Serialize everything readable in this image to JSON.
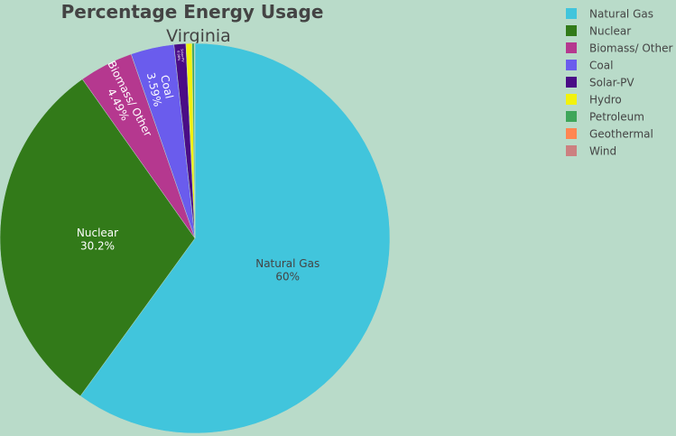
{
  "chart_data": {
    "type": "pie",
    "title": "Percentage Energy Usage",
    "subtitle": "Virginia",
    "legend_position": "top-right",
    "slices": [
      {
        "label": "Natural Gas",
        "value": 60.0,
        "text": "60%",
        "color": "#41c5dc"
      },
      {
        "label": "Nuclear",
        "value": 30.2,
        "text": "30.2%",
        "color": "#327a19"
      },
      {
        "label": "Biomass/ Other",
        "value": 4.49,
        "text": "4.49%",
        "color": "#b5388f"
      },
      {
        "label": "Coal",
        "value": 3.59,
        "text": "3.59%",
        "color": "#6a5ced"
      },
      {
        "label": "Solar-PV",
        "value": 0.98,
        "text": "0.98%",
        "color": "#4a0c86"
      },
      {
        "label": "Hydro",
        "value": 0.5,
        "text": "",
        "color": "#f2f20d"
      },
      {
        "label": "Petroleum",
        "value": 0.18,
        "text": "",
        "color": "#3ea65a"
      },
      {
        "label": "Geothermal",
        "value": 0.03,
        "text": "",
        "color": "#ff8652"
      },
      {
        "label": "Wind",
        "value": 0.03,
        "text": "",
        "color": "#cc8080"
      }
    ]
  }
}
